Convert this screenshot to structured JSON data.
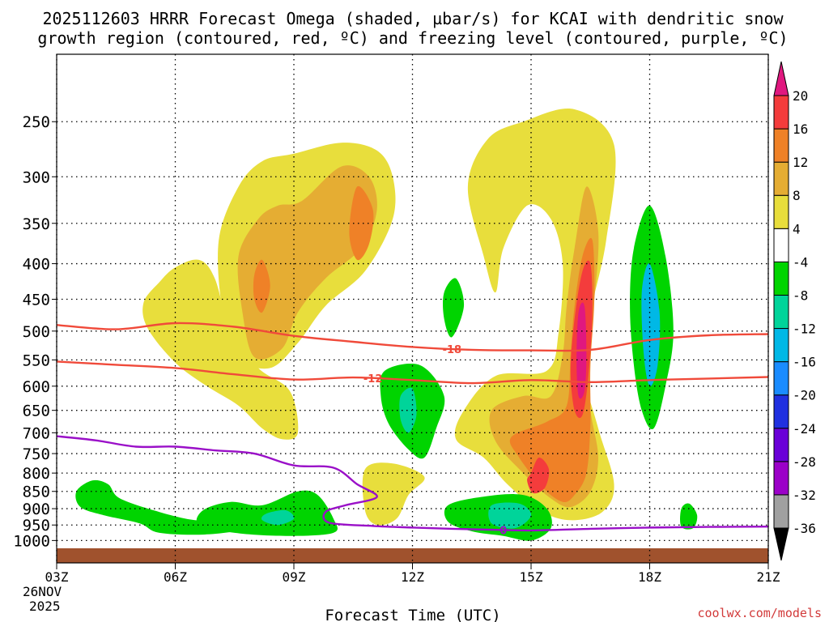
{
  "chart_data": {
    "type": "heatmap",
    "title_line1": "2025112603 HRRR Forecast Omega (shaded, µbar/s) for KCAI with dendritic snow",
    "title_line2": "growth region (contoured, red, ºC) and freezing level (contoured, purple, ºC)",
    "xlabel": "Forecast Time (UTC)",
    "ylabel": "",
    "x_ticks": [
      {
        "hour": 0,
        "label": "03Z"
      },
      {
        "hour": 3,
        "label": "06Z"
      },
      {
        "hour": 6,
        "label": "09Z"
      },
      {
        "hour": 9,
        "label": "12Z"
      },
      {
        "hour": 12,
        "label": "15Z"
      },
      {
        "hour": 15,
        "label": "18Z"
      },
      {
        "hour": 18,
        "label": "21Z"
      }
    ],
    "date_label_line1": "26NOV",
    "date_label_line2": "2025",
    "xlim": [
      0,
      18
    ],
    "ylim_hpa": [
      1040,
      200
    ],
    "y_ticks": [
      250,
      300,
      350,
      400,
      450,
      500,
      550,
      600,
      650,
      700,
      750,
      800,
      850,
      900,
      950,
      1000
    ],
    "colorbar": {
      "levels": [
        -36,
        -32,
        -28,
        -24,
        -20,
        -16,
        -12,
        -8,
        -4,
        4,
        8,
        12,
        16,
        20
      ],
      "labels": [
        "-36",
        "-32",
        "-28",
        "-24",
        "-20",
        "-16",
        "-12",
        "-8",
        "-4",
        "4",
        "8",
        "12",
        "16",
        "20"
      ],
      "bands": [
        "#a0a0a0",
        "#9b00c8",
        "#6a00d8",
        "#2030e0",
        "#1a8cff",
        "#00b8e6",
        "#00d49a",
        "#00d400",
        "#ffffff",
        "#e8de3c",
        "#e5ad33",
        "#ef8127",
        "#f43c3c"
      ],
      "under_color": "#000000",
      "over_color": "#e0187f"
    },
    "dgz_contours": [
      {
        "label": "-18",
        "color": "#f04a3a",
        "points": [
          [
            0,
            490
          ],
          [
            1.5,
            497
          ],
          [
            3,
            487
          ],
          [
            4.5,
            493
          ],
          [
            6,
            508
          ],
          [
            7.5,
            518
          ],
          [
            9,
            527
          ],
          [
            10.5,
            532
          ],
          [
            12,
            533
          ],
          [
            13.5,
            532
          ],
          [
            15,
            515
          ],
          [
            16.5,
            507
          ],
          [
            18,
            505
          ]
        ]
      },
      {
        "label": "-12",
        "color": "#f04a3a",
        "points": [
          [
            0,
            553
          ],
          [
            1.5,
            559
          ],
          [
            3,
            565
          ],
          [
            4.5,
            577
          ],
          [
            6,
            587
          ],
          [
            7.5,
            583
          ],
          [
            9,
            588
          ],
          [
            10.5,
            594
          ],
          [
            12,
            588
          ],
          [
            13.5,
            592
          ],
          [
            15,
            588
          ],
          [
            16.5,
            585
          ],
          [
            18,
            582
          ]
        ]
      }
    ],
    "freezing_level": {
      "label": "0",
      "color": "#9a10c8",
      "points": [
        [
          0,
          708
        ],
        [
          1,
          718
        ],
        [
          2,
          733
        ],
        [
          3,
          733
        ],
        [
          4,
          742
        ],
        [
          5,
          750
        ],
        [
          6,
          780
        ],
        [
          7,
          786
        ],
        [
          7.6,
          830
        ],
        [
          8.1,
          866
        ],
        [
          7.3,
          890
        ],
        [
          6.8,
          910
        ],
        [
          6.9,
          943
        ],
        [
          8,
          953
        ],
        [
          9,
          958
        ],
        [
          10,
          962
        ],
        [
          11,
          965
        ],
        [
          12,
          967
        ],
        [
          13.5,
          962
        ],
        [
          15,
          958
        ],
        [
          16.5,
          956
        ],
        [
          18,
          955
        ]
      ]
    },
    "omega_regions": [
      {
        "id": "upward-1",
        "color": "#e8de3c",
        "polygon": [
          [
            2.2,
            455
          ],
          [
            2.6,
            425
          ],
          [
            3,
            405
          ],
          [
            3.6,
            395
          ],
          [
            4,
            420
          ],
          [
            4.4,
            500
          ],
          [
            5.1,
            565
          ],
          [
            5.9,
            610
          ],
          [
            6.1,
            700
          ],
          [
            5.7,
            715
          ],
          [
            5.2,
            690
          ],
          [
            4.6,
            640
          ],
          [
            3.8,
            600
          ],
          [
            3,
            555
          ],
          [
            2.3,
            495
          ]
        ]
      },
      {
        "id": "upward-2",
        "color": "#e8de3c",
        "polygon": [
          [
            4.1,
            370
          ],
          [
            4.6,
            310
          ],
          [
            5.2,
            285
          ],
          [
            6,
            278
          ],
          [
            7.2,
            268
          ],
          [
            8.1,
            275
          ],
          [
            8.5,
            300
          ],
          [
            8.5,
            345
          ],
          [
            7.8,
            410
          ],
          [
            6.8,
            460
          ],
          [
            6.1,
            520
          ],
          [
            5.4,
            565
          ],
          [
            4.6,
            545
          ],
          [
            4.2,
            470
          ]
        ]
      },
      {
        "id": "upward-3",
        "color": "#e8de3c",
        "polygon": [
          [
            10.9,
            265
          ],
          [
            11.8,
            250
          ],
          [
            13.1,
            240
          ],
          [
            14.1,
            270
          ],
          [
            13.9,
            370
          ],
          [
            13.5,
            470
          ],
          [
            13.3,
            560
          ],
          [
            13.7,
            690
          ],
          [
            14.1,
            830
          ],
          [
            13.8,
            910
          ],
          [
            13,
            935
          ],
          [
            12.2,
            905
          ],
          [
            11.4,
            830
          ],
          [
            10.8,
            760
          ],
          [
            10.1,
            715
          ],
          [
            10.3,
            650
          ],
          [
            11.1,
            580
          ],
          [
            12.4,
            570
          ],
          [
            12.7,
            500
          ],
          [
            12.8,
            400
          ],
          [
            12.5,
            345
          ],
          [
            11.9,
            330
          ],
          [
            11.3,
            380
          ],
          [
            11.1,
            440
          ],
          [
            10.8,
            390
          ],
          [
            10.4,
            310
          ]
        ]
      },
      {
        "id": "upward-4",
        "color": "#e8de3c",
        "polygon": [
          [
            7.8,
            790
          ],
          [
            8.5,
            775
          ],
          [
            9.3,
            810
          ],
          [
            8.9,
            860
          ],
          [
            8.6,
            930
          ],
          [
            8.1,
            950
          ],
          [
            7.8,
            905
          ]
        ]
      },
      {
        "id": "upward-5",
        "color": "#e5ad33",
        "polygon": [
          [
            4.6,
            390
          ],
          [
            5.1,
            345
          ],
          [
            5.6,
            330
          ],
          [
            6.2,
            325
          ],
          [
            7.2,
            290
          ],
          [
            7.9,
            300
          ],
          [
            8.1,
            335
          ],
          [
            7.7,
            380
          ],
          [
            6.8,
            420
          ],
          [
            6.1,
            470
          ],
          [
            5.7,
            530
          ],
          [
            5,
            545
          ],
          [
            4.7,
            470
          ]
        ]
      },
      {
        "id": "upward-6",
        "color": "#e5ad33",
        "polygon": [
          [
            13.1,
            380
          ],
          [
            13.4,
            310
          ],
          [
            13.7,
            360
          ],
          [
            13.6,
            450
          ],
          [
            13.4,
            550
          ],
          [
            13.5,
            650
          ],
          [
            13.7,
            760
          ],
          [
            13.5,
            850
          ],
          [
            13,
            895
          ],
          [
            12.5,
            870
          ],
          [
            11.8,
            800
          ],
          [
            11.1,
            720
          ],
          [
            11,
            650
          ],
          [
            11.8,
            620
          ],
          [
            12.5,
            620
          ],
          [
            12.8,
            540
          ],
          [
            12.9,
            460
          ]
        ]
      },
      {
        "id": "upward-7",
        "color": "#ef8127",
        "polygon": [
          [
            7.6,
            310
          ],
          [
            8,
            335
          ],
          [
            7.9,
            375
          ],
          [
            7.6,
            395
          ],
          [
            7.4,
            360
          ]
        ]
      },
      {
        "id": "upward-8",
        "color": "#ef8127",
        "polygon": [
          [
            5,
            415
          ],
          [
            5.2,
            395
          ],
          [
            5.4,
            430
          ],
          [
            5.2,
            470
          ],
          [
            5,
            450
          ]
        ]
      },
      {
        "id": "upward-9",
        "color": "#ef8127",
        "polygon": [
          [
            13.3,
            390
          ],
          [
            13.55,
            370
          ],
          [
            13.6,
            450
          ],
          [
            13.5,
            560
          ],
          [
            13.5,
            680
          ],
          [
            13.4,
            800
          ],
          [
            13.1,
            860
          ],
          [
            12.8,
            880
          ],
          [
            12.3,
            840
          ],
          [
            11.7,
            760
          ],
          [
            11.5,
            710
          ],
          [
            12.4,
            675
          ],
          [
            12.9,
            640
          ],
          [
            13,
            540
          ],
          [
            13.1,
            460
          ]
        ]
      },
      {
        "id": "upward-10",
        "color": "#f43c3c",
        "polygon": [
          [
            13.3,
            410
          ],
          [
            13.5,
            400
          ],
          [
            13.55,
            470
          ],
          [
            13.45,
            580
          ],
          [
            13.3,
            660
          ],
          [
            13.1,
            650
          ],
          [
            13,
            570
          ],
          [
            13.1,
            480
          ]
        ]
      },
      {
        "id": "upward-11",
        "color": "#f43c3c",
        "polygon": [
          [
            12,
            800
          ],
          [
            12.2,
            760
          ],
          [
            12.45,
            790
          ],
          [
            12.35,
            840
          ],
          [
            12.05,
            855
          ],
          [
            11.9,
            820
          ]
        ]
      },
      {
        "id": "upward-12",
        "color": "#e0187f",
        "polygon": [
          [
            13.2,
            470
          ],
          [
            13.35,
            460
          ],
          [
            13.4,
            540
          ],
          [
            13.35,
            610
          ],
          [
            13.2,
            620
          ],
          [
            13.15,
            550
          ]
        ]
      },
      {
        "id": "downward-1",
        "color": "#00d400",
        "polygon": [
          [
            0.5,
            850
          ],
          [
            0.9,
            820
          ],
          [
            1.3,
            830
          ],
          [
            1.6,
            870
          ],
          [
            2.6,
            910
          ],
          [
            3.5,
            935
          ],
          [
            4.5,
            940
          ],
          [
            4.9,
            960
          ],
          [
            3.8,
            980
          ],
          [
            2.6,
            975
          ],
          [
            2.1,
            945
          ],
          [
            1.2,
            920
          ],
          [
            0.6,
            895
          ]
        ]
      },
      {
        "id": "downward-2",
        "color": "#00d400",
        "polygon": [
          [
            3.7,
            905
          ],
          [
            4.4,
            880
          ],
          [
            5.2,
            890
          ],
          [
            6.1,
            850
          ],
          [
            6.6,
            860
          ],
          [
            7,
            930
          ],
          [
            7,
            975
          ],
          [
            5.8,
            985
          ],
          [
            4.5,
            975
          ],
          [
            3.6,
            950
          ]
        ]
      },
      {
        "id": "downward-3",
        "color": "#00d400",
        "polygon": [
          [
            8.3,
            570
          ],
          [
            9.2,
            560
          ],
          [
            9.8,
            620
          ],
          [
            9.6,
            690
          ],
          [
            9.3,
            760
          ],
          [
            8.9,
            740
          ],
          [
            8.4,
            680
          ],
          [
            8.2,
            620
          ]
        ]
      },
      {
        "id": "downward-4",
        "color": "#00d400",
        "polygon": [
          [
            9.8,
            440
          ],
          [
            10.1,
            420
          ],
          [
            10.3,
            460
          ],
          [
            10,
            510
          ],
          [
            9.8,
            480
          ]
        ]
      },
      {
        "id": "downward-5",
        "color": "#00d400",
        "polygon": [
          [
            9.9,
            890
          ],
          [
            10.8,
            865
          ],
          [
            11.8,
            860
          ],
          [
            12.4,
            900
          ],
          [
            12.5,
            960
          ],
          [
            12,
            1000
          ],
          [
            11.3,
            985
          ],
          [
            10.5,
            970
          ],
          [
            9.9,
            940
          ]
        ]
      },
      {
        "id": "downward-6",
        "color": "#00d400",
        "polygon": [
          [
            14.6,
            380
          ],
          [
            15,
            330
          ],
          [
            15.4,
            390
          ],
          [
            15.6,
            500
          ],
          [
            15.4,
            600
          ],
          [
            15.1,
            690
          ],
          [
            14.8,
            650
          ],
          [
            14.6,
            560
          ],
          [
            14.5,
            460
          ]
        ]
      },
      {
        "id": "downward-7",
        "color": "#00d400",
        "polygon": [
          [
            15.8,
            900
          ],
          [
            16,
            885
          ],
          [
            16.2,
            920
          ],
          [
            16.1,
            960
          ],
          [
            15.8,
            955
          ]
        ]
      },
      {
        "id": "downward-8",
        "color": "#00b8e6",
        "polygon": [
          [
            14.8,
            440
          ],
          [
            15,
            400
          ],
          [
            15.25,
            470
          ],
          [
            15.2,
            560
          ],
          [
            15,
            600
          ],
          [
            14.85,
            540
          ]
        ]
      },
      {
        "id": "downward-9",
        "color": "#00d49a",
        "polygon": [
          [
            8.7,
            620
          ],
          [
            9,
            605
          ],
          [
            9.1,
            660
          ],
          [
            8.9,
            700
          ],
          [
            8.7,
            670
          ]
        ]
      },
      {
        "id": "downward-10",
        "color": "#00d49a",
        "polygon": [
          [
            11,
            890
          ],
          [
            11.7,
            885
          ],
          [
            12,
            920
          ],
          [
            11.6,
            960
          ],
          [
            11,
            945
          ]
        ]
      },
      {
        "id": "downward-11",
        "color": "#00d49a",
        "polygon": [
          [
            5.3,
            915
          ],
          [
            5.8,
            905
          ],
          [
            6,
            930
          ],
          [
            5.6,
            950
          ],
          [
            5.2,
            935
          ]
        ]
      }
    ],
    "ground": {
      "color": "#a0522d",
      "top_hpa": 1010
    }
  },
  "credit": "coolwx.com/models"
}
